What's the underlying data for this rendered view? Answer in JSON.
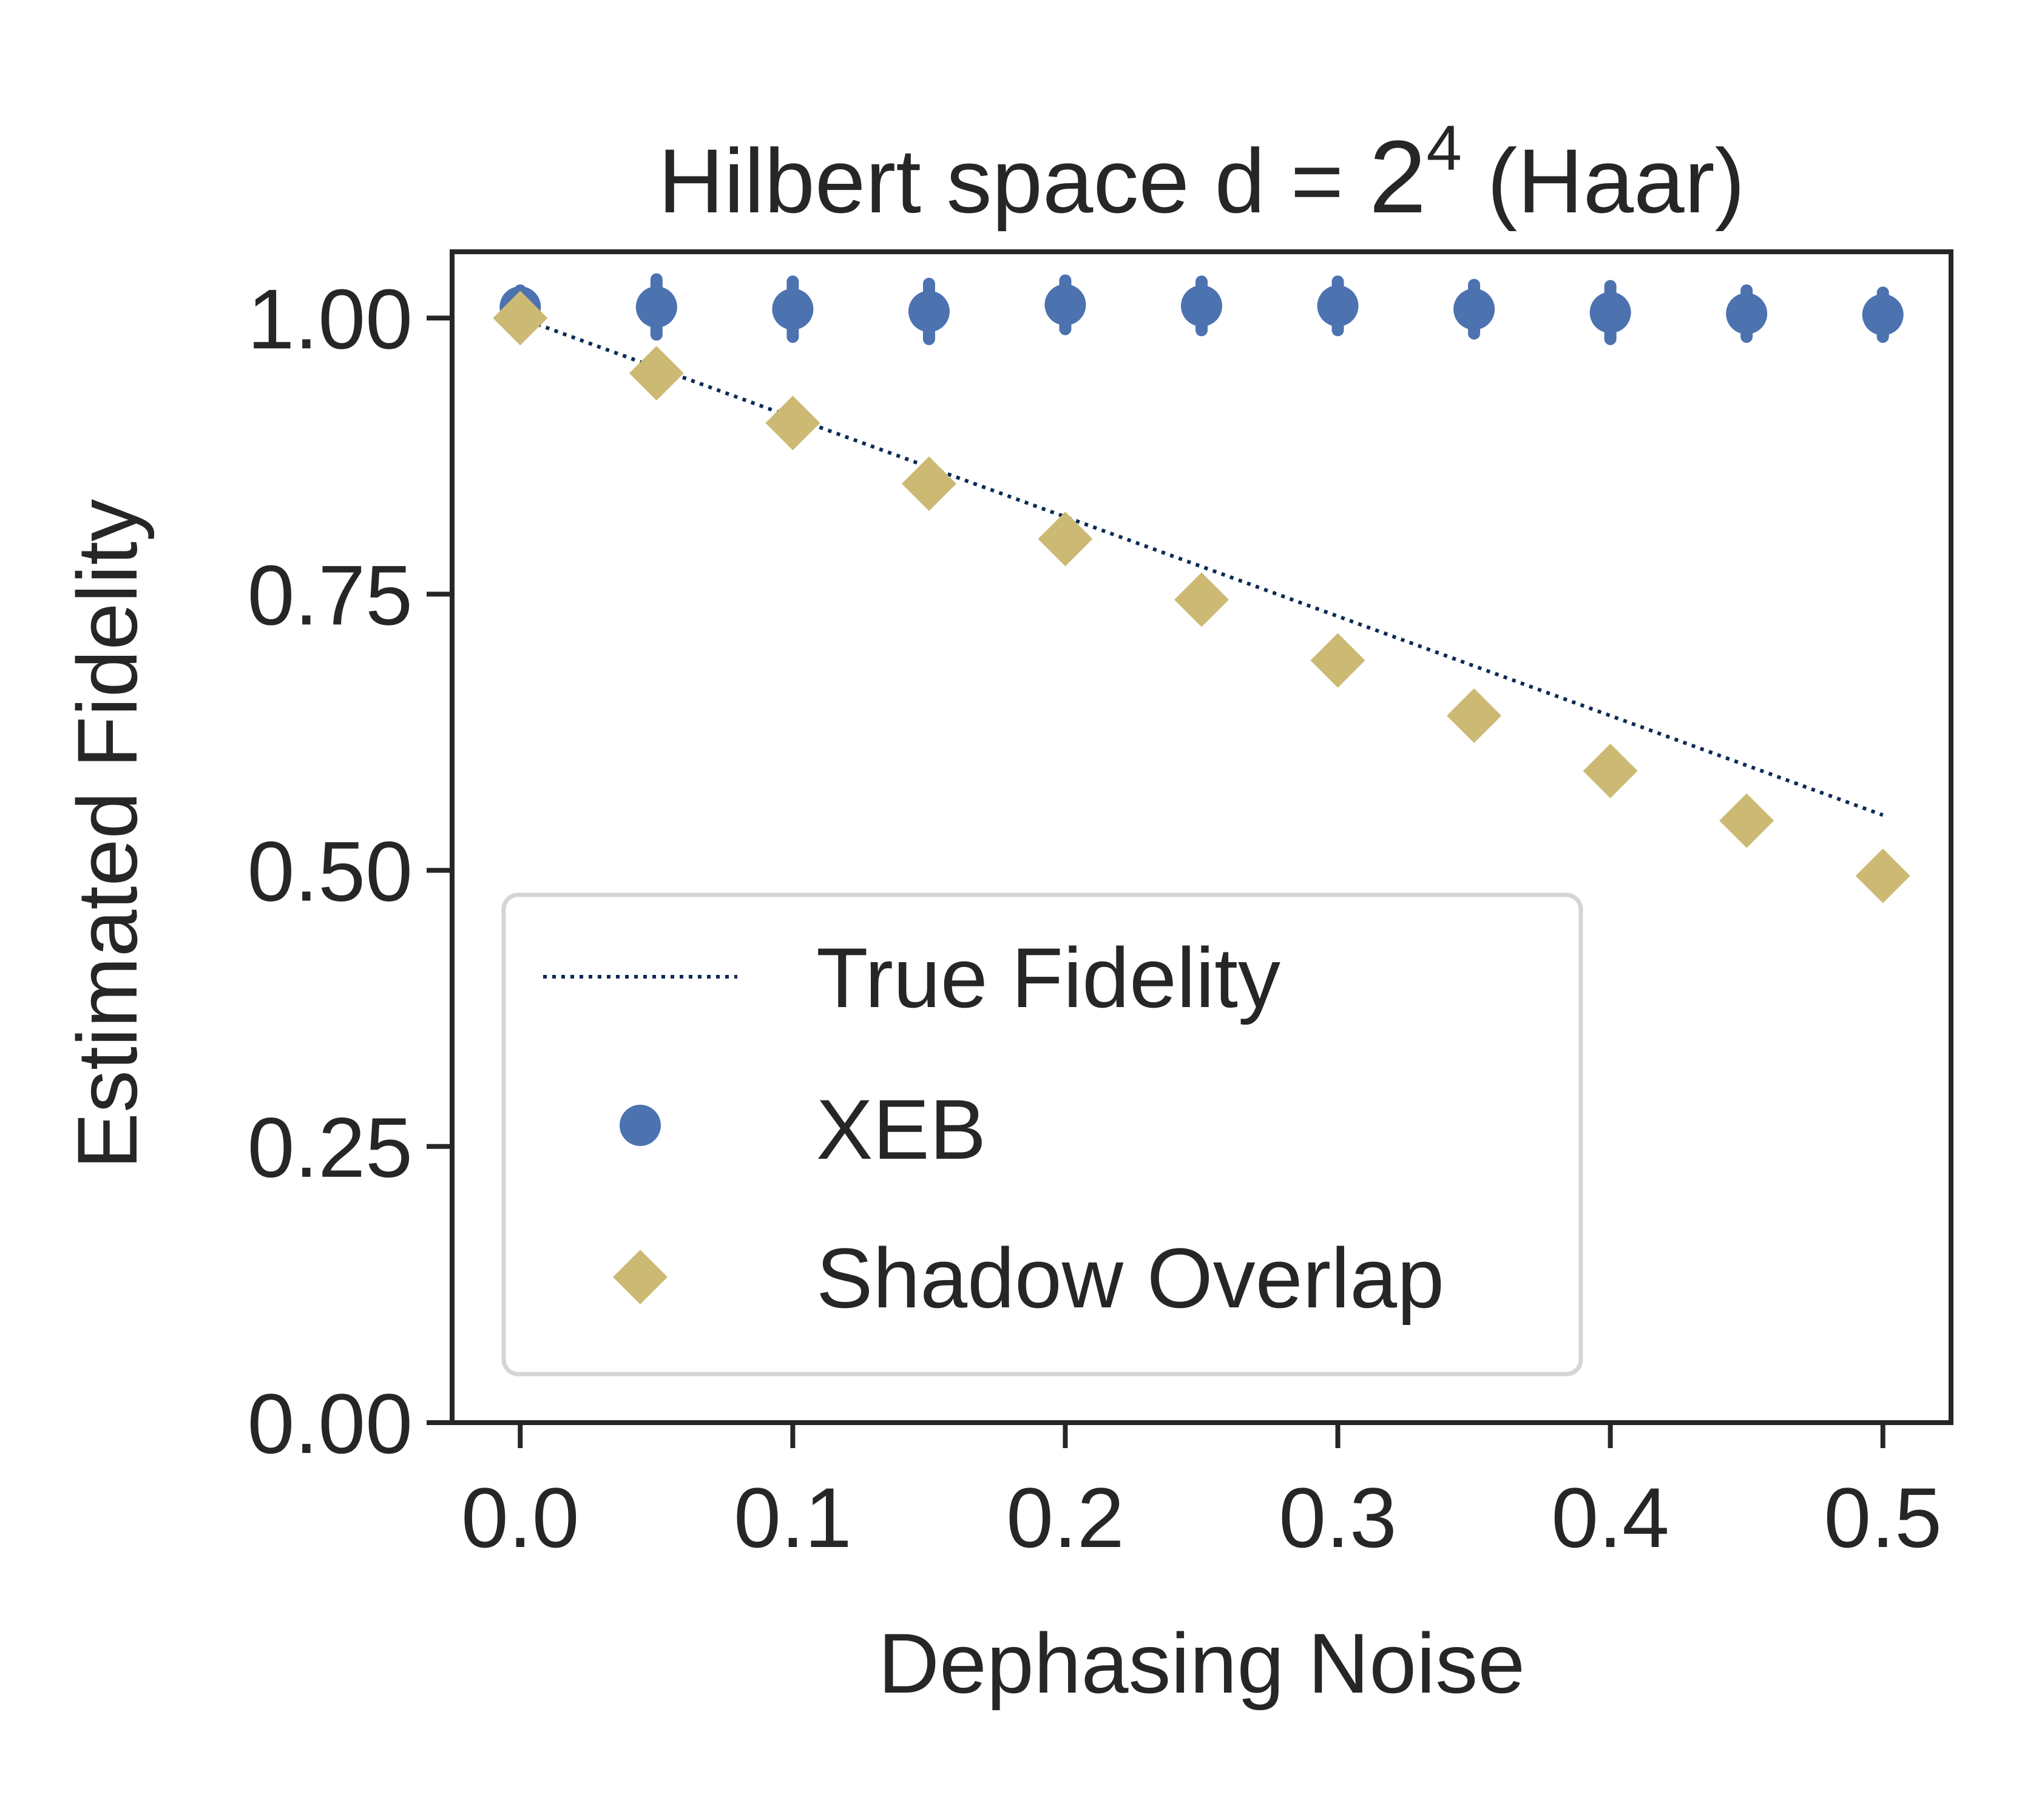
{
  "chart_data": {
    "type": "scatter",
    "title": {
      "prefix": "Hilbert space d = ",
      "base": "2",
      "exponent": "4",
      "suffix": " (Haar)"
    },
    "xlabel": "Dephasing Noise",
    "ylabel": "Estimated Fidelity",
    "xlim": [
      -0.025,
      0.525
    ],
    "ylim": [
      0.0,
      1.06
    ],
    "xticks": [
      0.0,
      0.1,
      0.2,
      0.3,
      0.4,
      0.5
    ],
    "xtick_labels": [
      "0.0",
      "0.1",
      "0.2",
      "0.3",
      "0.4",
      "0.5"
    ],
    "yticks": [
      0.0,
      0.25,
      0.5,
      0.75,
      1.0
    ],
    "ytick_labels": [
      "0.00",
      "0.25",
      "0.50",
      "0.75",
      "1.00"
    ],
    "grid": false,
    "legend_position": "lower-left",
    "x": [
      0.0,
      0.05,
      0.1,
      0.15,
      0.2,
      0.25,
      0.3,
      0.35,
      0.4,
      0.45,
      0.5
    ],
    "series": [
      {
        "name": "True Fidelity",
        "kind": "dotted-line",
        "color": "#0b2a55",
        "values": [
          1.0,
          0.955,
          0.91,
          0.865,
          0.82,
          0.775,
          0.73,
          0.685,
          0.64,
          0.595,
          0.55
        ]
      },
      {
        "name": "XEB",
        "kind": "circle-with-errorbars",
        "color": "#4c72b0",
        "values": [
          1.01,
          1.01,
          1.008,
          1.006,
          1.012,
          1.011,
          1.011,
          1.008,
          1.005,
          1.004,
          1.003
        ],
        "errors": [
          0.015,
          0.025,
          0.025,
          0.025,
          0.022,
          0.022,
          0.022,
          0.022,
          0.024,
          0.021,
          0.02
        ]
      },
      {
        "name": "Shadow Overlap",
        "kind": "diamond",
        "color": "#ccb974",
        "values": [
          1.0,
          0.95,
          0.905,
          0.85,
          0.8,
          0.745,
          0.69,
          0.64,
          0.59,
          0.545,
          0.495
        ]
      }
    ]
  }
}
